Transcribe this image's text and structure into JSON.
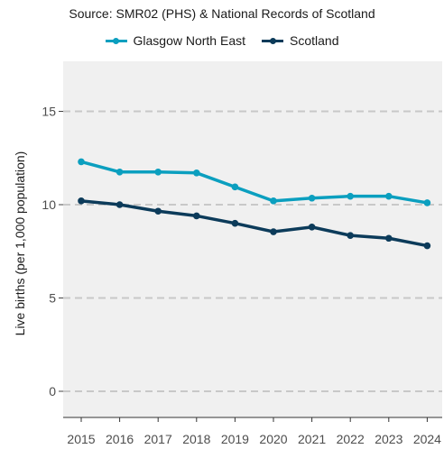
{
  "chart_data": {
    "type": "line",
    "title": "Source: SMR02 (PHS) & National Records of Scotland",
    "xlabel": "",
    "ylabel": "Live births (per 1,000 population)",
    "categories": [
      "2015",
      "2016",
      "2017",
      "2018",
      "2019",
      "2020",
      "2021",
      "2022",
      "2023",
      "2024"
    ],
    "series": [
      {
        "name": "Glasgow North East",
        "color": "#0b9fbf",
        "values": [
          12.3,
          11.75,
          11.75,
          11.7,
          10.95,
          10.2,
          10.35,
          10.45,
          10.45,
          10.1
        ]
      },
      {
        "name": "Scotland",
        "color": "#0c3b5a",
        "values": [
          10.2,
          10.0,
          9.65,
          9.4,
          9.0,
          8.55,
          8.8,
          8.35,
          8.2,
          7.8
        ]
      }
    ],
    "yticks": [
      0,
      5,
      10,
      15
    ],
    "ylim": [
      -1.5,
      17.8
    ],
    "grid": "horizontal-dashed",
    "legend_position": "top"
  }
}
